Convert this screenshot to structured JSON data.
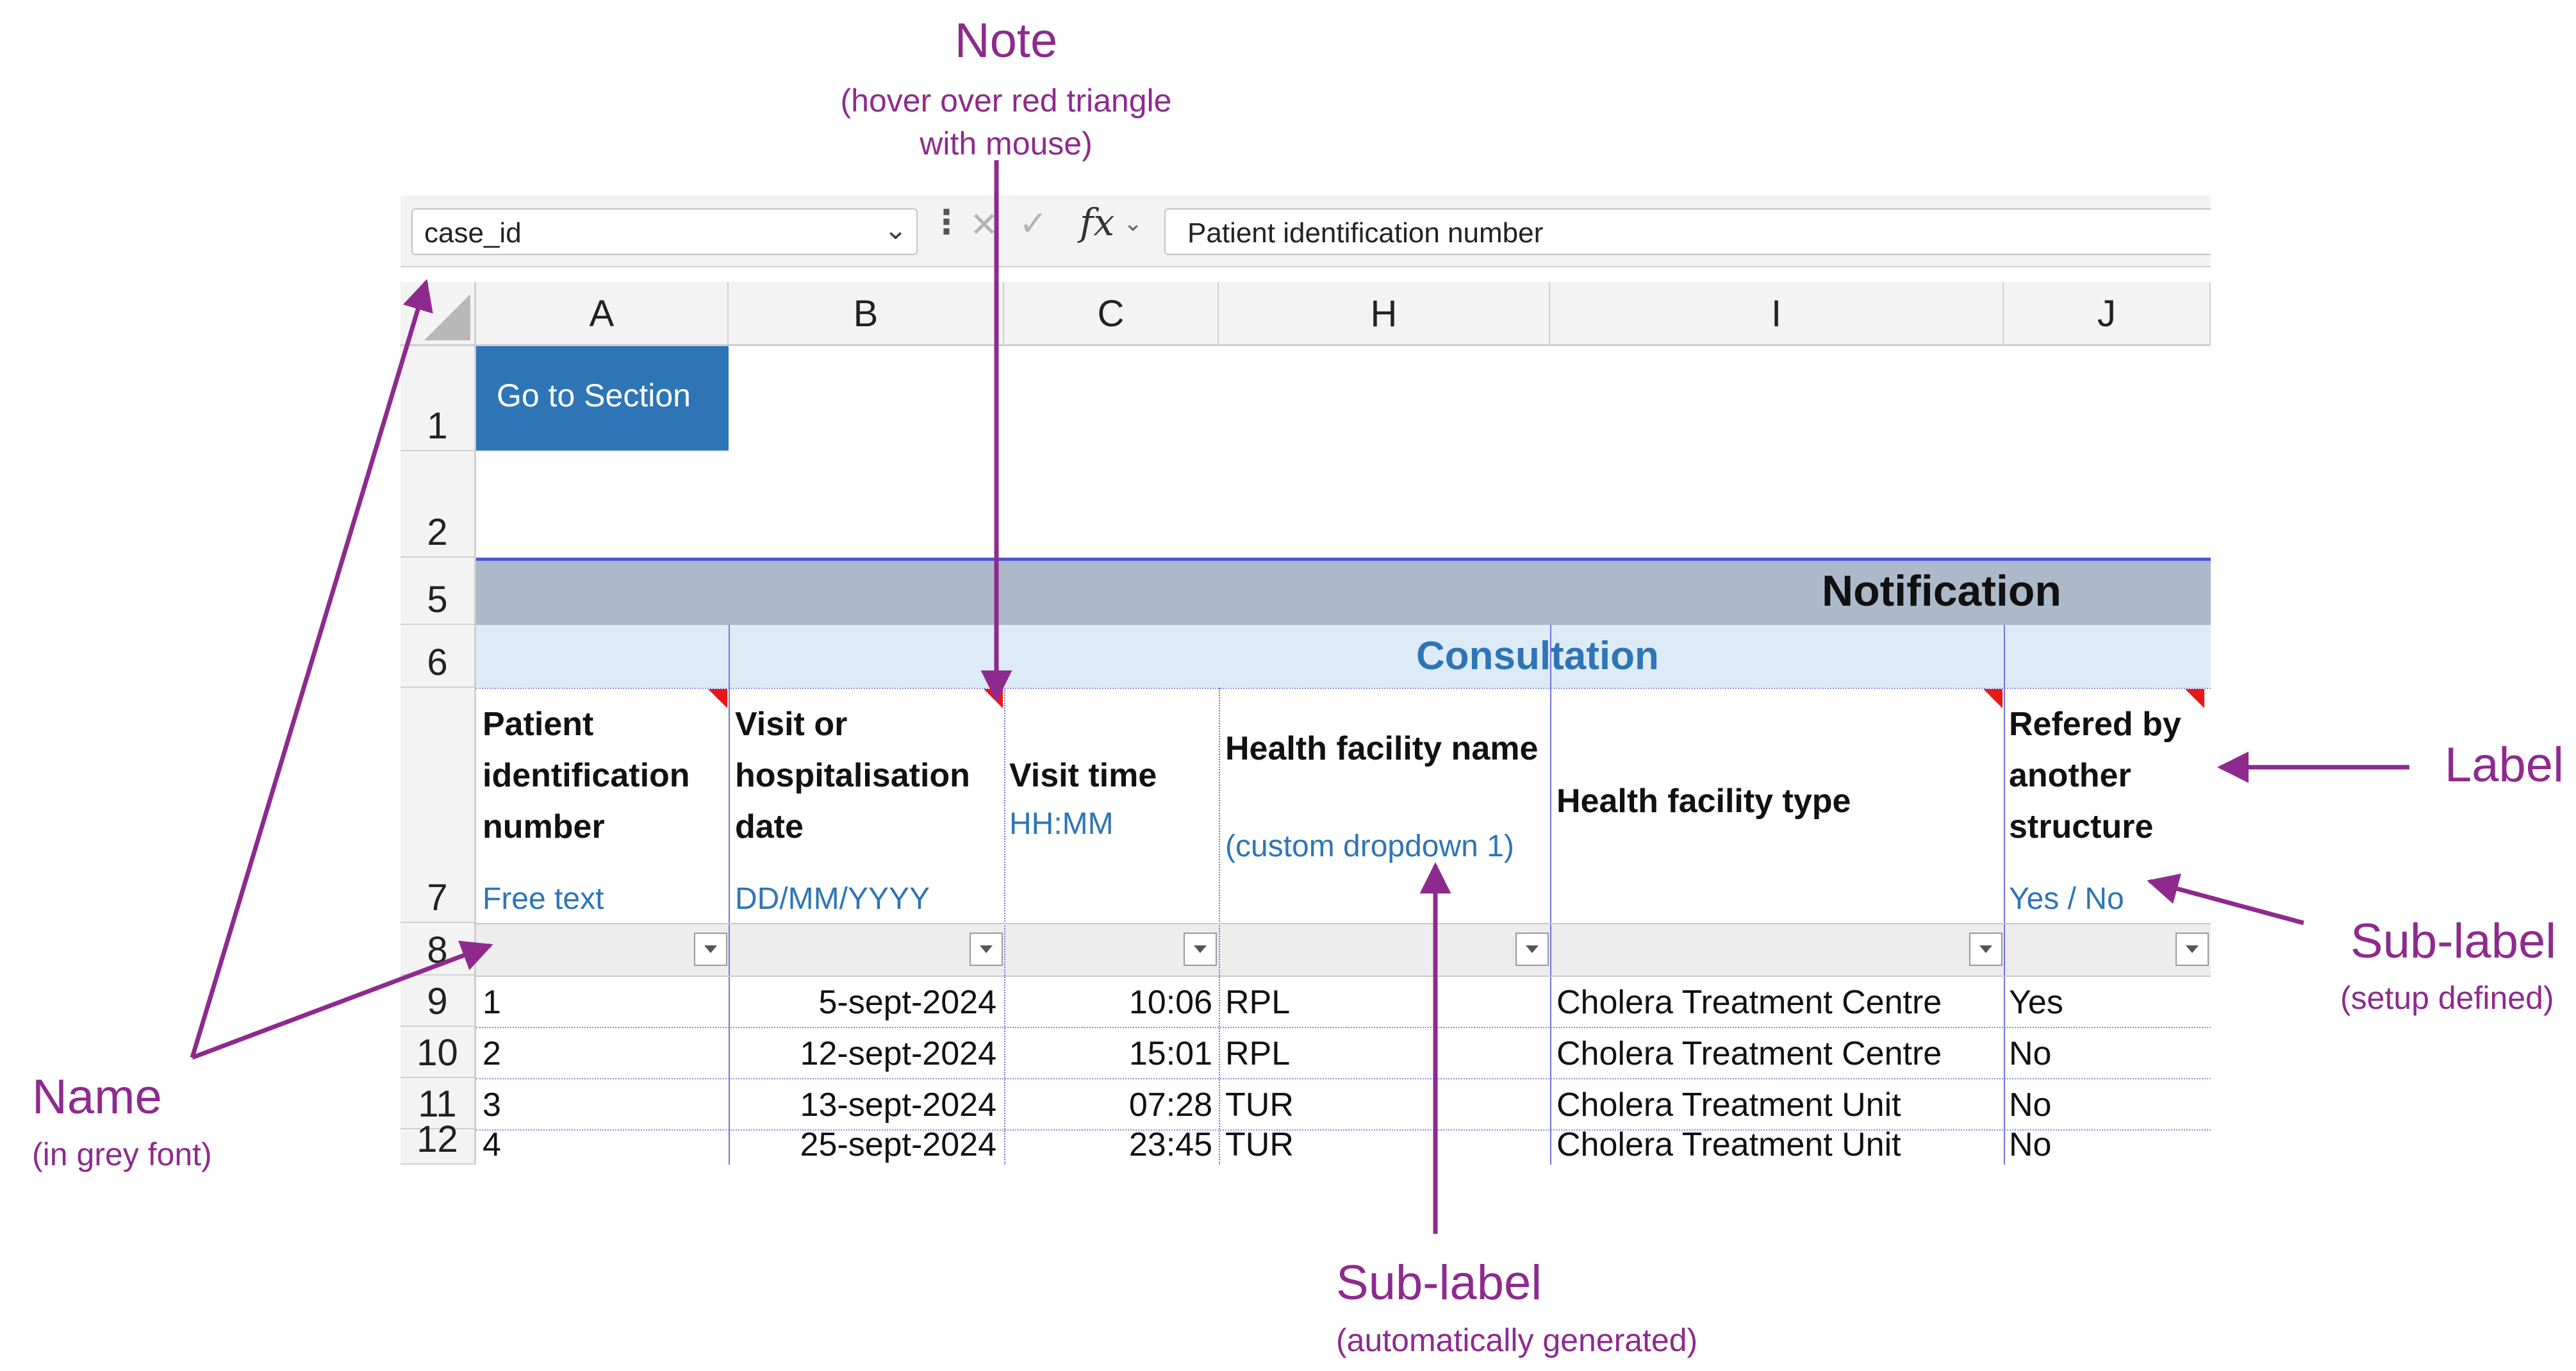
{
  "annotations": {
    "note": {
      "title": "Note",
      "sub_line1": "(hover over red triangle",
      "sub_line2": "with mouse)"
    },
    "label": {
      "title": "Label"
    },
    "sublabel_setup": {
      "title": "Sub-label",
      "sub": "(setup defined)"
    },
    "name": {
      "title": "Name",
      "sub": "(in grey font)"
    },
    "sublabel_auto": {
      "title": "Sub-label",
      "sub": "(automatically generated)"
    },
    "arrow_color": "#8e2a8e"
  },
  "formula_bar": {
    "name_box": "case_id",
    "formula": "Patient identification number",
    "fx": "fx"
  },
  "columns": [
    "A",
    "B",
    "C",
    "H",
    "I",
    "J"
  ],
  "rows": [
    "1",
    "2",
    "5",
    "6",
    "7",
    "8",
    "9",
    "10",
    "11",
    "12"
  ],
  "go_button": "Go to Section",
  "section_title": "Notification",
  "subsection_title": "Consultation",
  "headers": {
    "A": {
      "label_lines": [
        "Patient",
        "identification",
        "number"
      ],
      "sublabel": "Free text"
    },
    "B": {
      "label_lines": [
        "Visit or",
        "hospitalisation",
        "date"
      ],
      "sublabel": "DD/MM/YYYY"
    },
    "C": {
      "label_lines": [
        "Visit time"
      ],
      "sublabel": "HH:MM"
    },
    "H": {
      "label_lines": [
        "Health facility name"
      ],
      "sublabel": "(custom dropdown 1)"
    },
    "I": {
      "label_lines": [
        "Health facility type"
      ],
      "sublabel": ""
    },
    "J": {
      "label_lines": [
        "Refered by",
        "another",
        "structure"
      ],
      "sublabel": "Yes / No"
    }
  },
  "table_rows": [
    {
      "id": "1",
      "date": "5-sept-2024",
      "time": "10:06",
      "facility": "RPL",
      "type": "Cholera Treatment Centre",
      "referred": "Yes"
    },
    {
      "id": "2",
      "date": "12-sept-2024",
      "time": "15:01",
      "facility": "RPL",
      "type": "Cholera Treatment Centre",
      "referred": "No"
    },
    {
      "id": "3",
      "date": "13-sept-2024",
      "time": "07:28",
      "facility": "TUR",
      "type": "Cholera Treatment Unit",
      "referred": "No"
    },
    {
      "id": "4",
      "date": "25-sept-2024",
      "time": "23:45",
      "facility": "TUR",
      "type": "Cholera Treatment Unit",
      "referred": "No"
    }
  ],
  "colors": {
    "header_fill": "#acb9ca",
    "subheader_fill": "#ddebf7",
    "button_fill": "#2e75b6",
    "note_triangle": "#e81818",
    "sublabel_text": "#2e75b6"
  }
}
